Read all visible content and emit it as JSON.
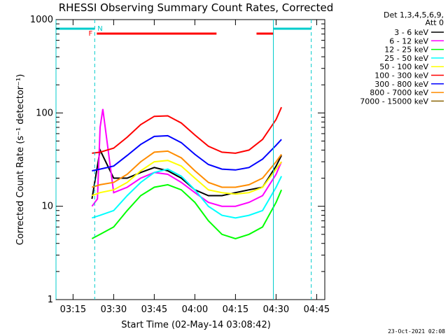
{
  "timestamp": "23-Oct-2021 02:08",
  "chart_data": {
    "type": "line",
    "title": "RHESSI Observing Summary Count Rates, Corrected",
    "xlabel": "Start Time (02-May-14 03:08:42)",
    "ylabel": "Corrected Count Rate (s⁻¹ detector⁻¹)",
    "y_scale": "log",
    "ylim": [
      1,
      1000
    ],
    "xlim": [
      "03:08:42",
      "04:48:00"
    ],
    "x_ticks": [
      "03:15",
      "03:30",
      "03:45",
      "04:00",
      "04:15",
      "04:30",
      "04:45"
    ],
    "y_ticks": [
      "1",
      "10",
      "100",
      "1000"
    ],
    "legend_header": [
      "Det 1,3,4,5,6,9,",
      "Att 0"
    ],
    "legend_position": "right",
    "grid": false,
    "series": [
      {
        "name": "3 - 6 keV",
        "color": "#000000",
        "x": [
          "03:22",
          "03:25",
          "03:30",
          "03:35",
          "03:40",
          "03:45",
          "03:50",
          "03:55",
          "04:00",
          "04:05",
          "04:10",
          "04:15",
          "04:20",
          "04:25",
          "04:30",
          "04:32"
        ],
        "y": [
          12,
          40,
          20,
          20,
          23,
          26,
          24,
          20,
          15,
          13,
          13,
          14,
          15,
          16,
          27,
          35
        ]
      },
      {
        "name": "6 - 12 keV",
        "color": "#ff00ff",
        "x": [
          "03:22",
          "03:24",
          "03:25",
          "03:26",
          "03:30",
          "03:35",
          "03:40",
          "03:45",
          "03:50",
          "03:55",
          "04:00",
          "04:05",
          "04:10",
          "04:15",
          "04:20",
          "04:25",
          "04:30",
          "04:32"
        ],
        "y": [
          10,
          12,
          70,
          110,
          14,
          16,
          20,
          23,
          22,
          18,
          14,
          11,
          10,
          10,
          11,
          13,
          22,
          30
        ]
      },
      {
        "name": "12 - 25 keV",
        "color": "#00ff00",
        "x": [
          "03:22",
          "03:25",
          "03:30",
          "03:35",
          "03:40",
          "03:45",
          "03:50",
          "03:55",
          "04:00",
          "04:05",
          "04:10",
          "04:15",
          "04:20",
          "04:25",
          "04:30",
          "04:32"
        ],
        "y": [
          4.5,
          5,
          6,
          9,
          13,
          16,
          17,
          15,
          11,
          7,
          5,
          4.5,
          5,
          6,
          11,
          15
        ]
      },
      {
        "name": "25 - 50 keV",
        "color": "#00ffff",
        "x": [
          "03:22",
          "03:25",
          "03:30",
          "03:35",
          "03:40",
          "03:45",
          "03:50",
          "03:55",
          "04:00",
          "04:05",
          "04:10",
          "04:15",
          "04:20",
          "04:25",
          "04:30",
          "04:32"
        ],
        "y": [
          7.5,
          8,
          9,
          13,
          18,
          23,
          25,
          21,
          15,
          10,
          8,
          7.5,
          8,
          9,
          16,
          21
        ]
      },
      {
        "name": "50 - 100 keV",
        "color": "#ffff00",
        "x": [
          "03:22",
          "03:25",
          "03:30",
          "03:35",
          "03:40",
          "03:45",
          "03:50",
          "03:55",
          "04:00",
          "04:05",
          "04:10",
          "04:15",
          "04:20",
          "04:25",
          "04:30",
          "04:32"
        ],
        "y": [
          13,
          14,
          15,
          18,
          24,
          30,
          31,
          27,
          20,
          15,
          14,
          13.5,
          14,
          16,
          25,
          30
        ]
      },
      {
        "name": "100 - 300 keV",
        "color": "#ff0000",
        "x": [
          "03:22",
          "03:25",
          "03:30",
          "03:35",
          "03:40",
          "03:45",
          "03:50",
          "03:55",
          "04:00",
          "04:05",
          "04:10",
          "04:15",
          "04:20",
          "04:25",
          "04:30",
          "04:32"
        ],
        "y": [
          37,
          38,
          42,
          55,
          75,
          92,
          93,
          78,
          58,
          44,
          38,
          37,
          40,
          52,
          85,
          115
        ]
      },
      {
        "name": "300 - 800 keV",
        "color": "#0000ff",
        "x": [
          "03:22",
          "03:25",
          "03:30",
          "03:35",
          "03:40",
          "03:45",
          "03:50",
          "03:55",
          "04:00",
          "04:05",
          "04:10",
          "04:15",
          "04:20",
          "04:25",
          "04:30",
          "04:32"
        ],
        "y": [
          24,
          25,
          27,
          35,
          46,
          56,
          57,
          48,
          36,
          28,
          25,
          24.5,
          26,
          32,
          45,
          52
        ]
      },
      {
        "name": "800 - 7000 keV",
        "color": "#ff8c00",
        "x": [
          "03:22",
          "03:25",
          "03:30",
          "03:35",
          "03:40",
          "03:45",
          "03:50",
          "03:55",
          "04:00",
          "04:05",
          "04:10",
          "04:15",
          "04:20",
          "04:25",
          "04:30",
          "04:32"
        ],
        "y": [
          16,
          17,
          18,
          22,
          30,
          38,
          39,
          33,
          24,
          18,
          16,
          16,
          17,
          20,
          30,
          36
        ]
      },
      {
        "name": "7000 - 15000 keV",
        "color": "#8b6508",
        "x": [],
        "y": []
      }
    ],
    "annotations": {
      "markers": [
        {
          "text": "F",
          "color": "#ff0000"
        },
        {
          "text": "N",
          "color": "#00cccc"
        }
      ],
      "night_bars": [
        {
          "color": "#00cccc",
          "start": "03:08:42",
          "end": "03:23:00"
        },
        {
          "color": "#00cccc",
          "start": "04:29:00",
          "end": "04:43:00"
        }
      ],
      "flare_bars": [
        {
          "color": "#ff0000",
          "start": "03:23:00",
          "end": "04:08:00"
        },
        {
          "color": "#ff0000",
          "start": "04:22:00",
          "end": "04:29:00"
        }
      ],
      "vlines_solid": [
        "03:08:42",
        "04:29:00"
      ],
      "vlines_dashed": [
        "03:23:00",
        "04:43:00"
      ]
    }
  }
}
